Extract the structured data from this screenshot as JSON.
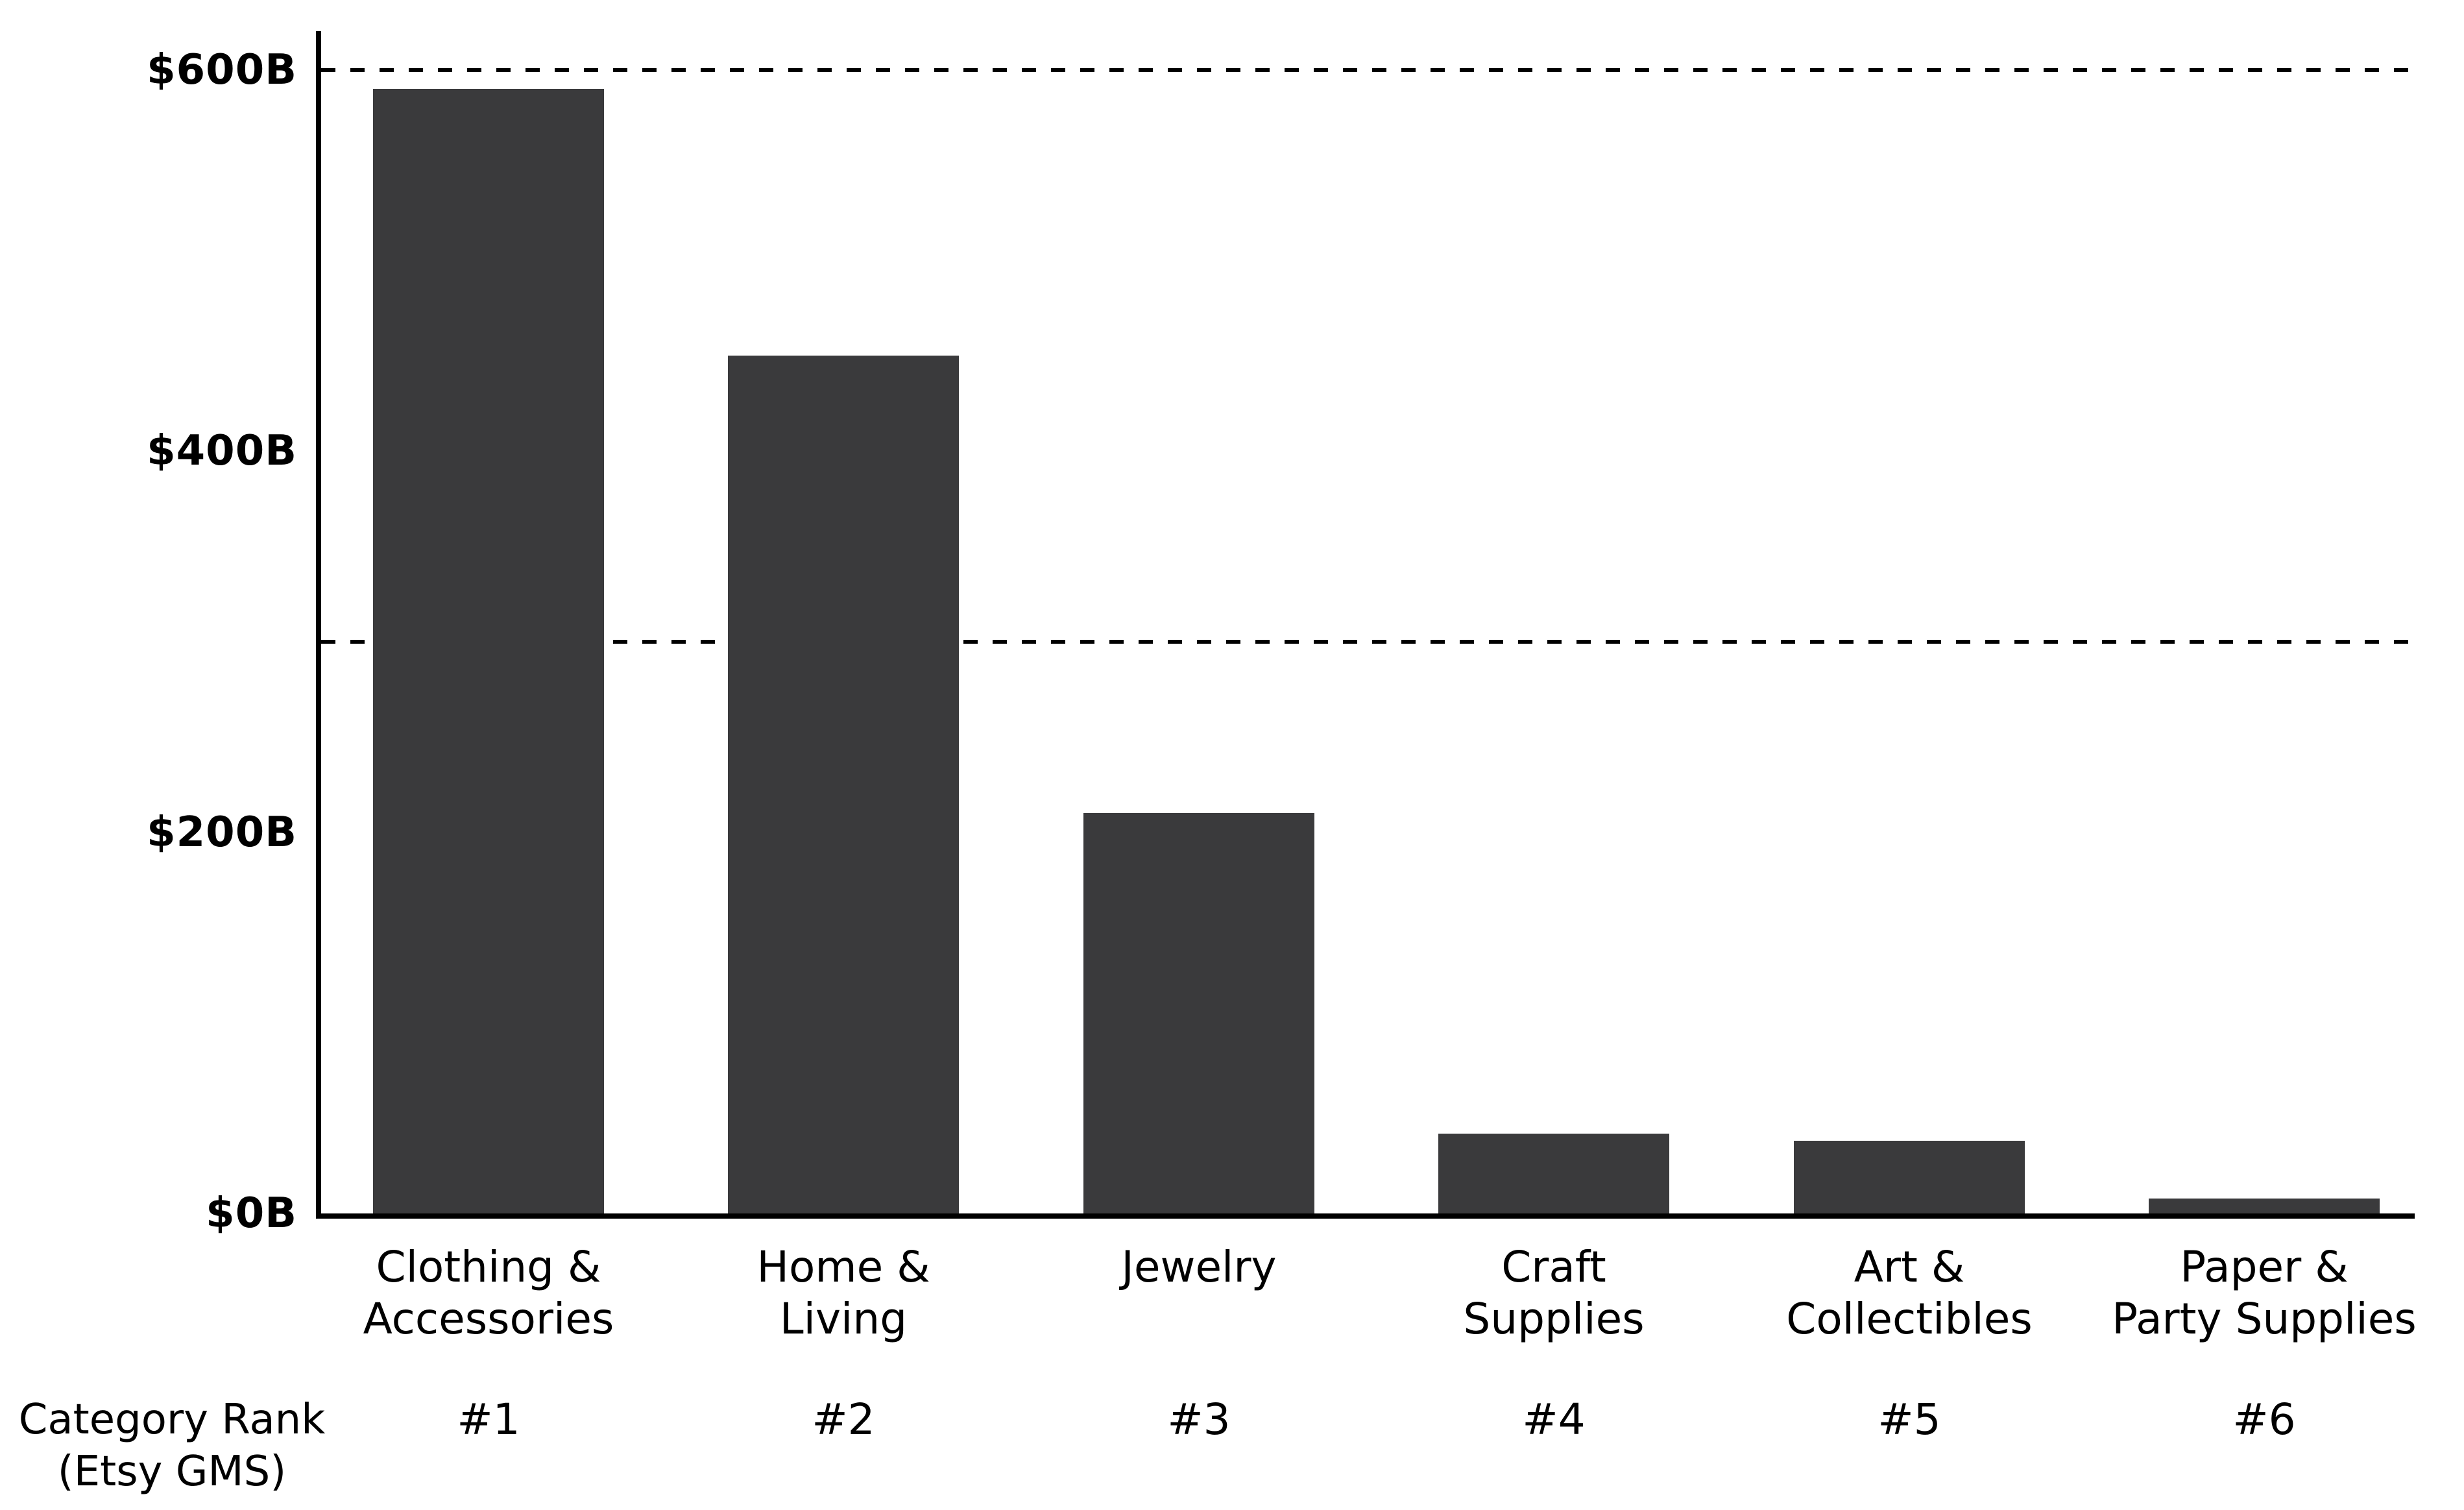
{
  "chart_data": {
    "type": "bar",
    "title": "",
    "unit": "USD billions (B)",
    "categories": [
      [
        "Clothing &",
        "Accessories"
      ],
      [
        "Home &",
        "Living"
      ],
      [
        "Jewelry"
      ],
      [
        "Craft",
        "Supplies"
      ],
      [
        "Art &",
        "Collectibles"
      ],
      [
        "Paper &",
        "Party Supplies"
      ]
    ],
    "values": [
      590,
      450,
      210,
      42,
      38,
      8
    ],
    "y_ticks": [
      {
        "label": "$600B",
        "value": 600
      },
      {
        "label": "$400B",
        "value": 400
      },
      {
        "label": "$200B",
        "value": 200
      },
      {
        "label": "$0B",
        "value": 0
      }
    ],
    "reference_lines": [
      {
        "value": 600,
        "style": "dashed"
      },
      {
        "value": 300,
        "style": "dashed"
      }
    ],
    "ylim": [
      0,
      600
    ],
    "grid": "off",
    "legend": "none",
    "bar_color": "#3a3a3c",
    "axis_color": "#000000",
    "rank_row": {
      "header_lines": [
        "Category Rank",
        "(Etsy GMS)"
      ],
      "ranks": [
        "#1",
        "#2",
        "#3",
        "#4",
        "#5",
        "#6"
      ]
    }
  }
}
